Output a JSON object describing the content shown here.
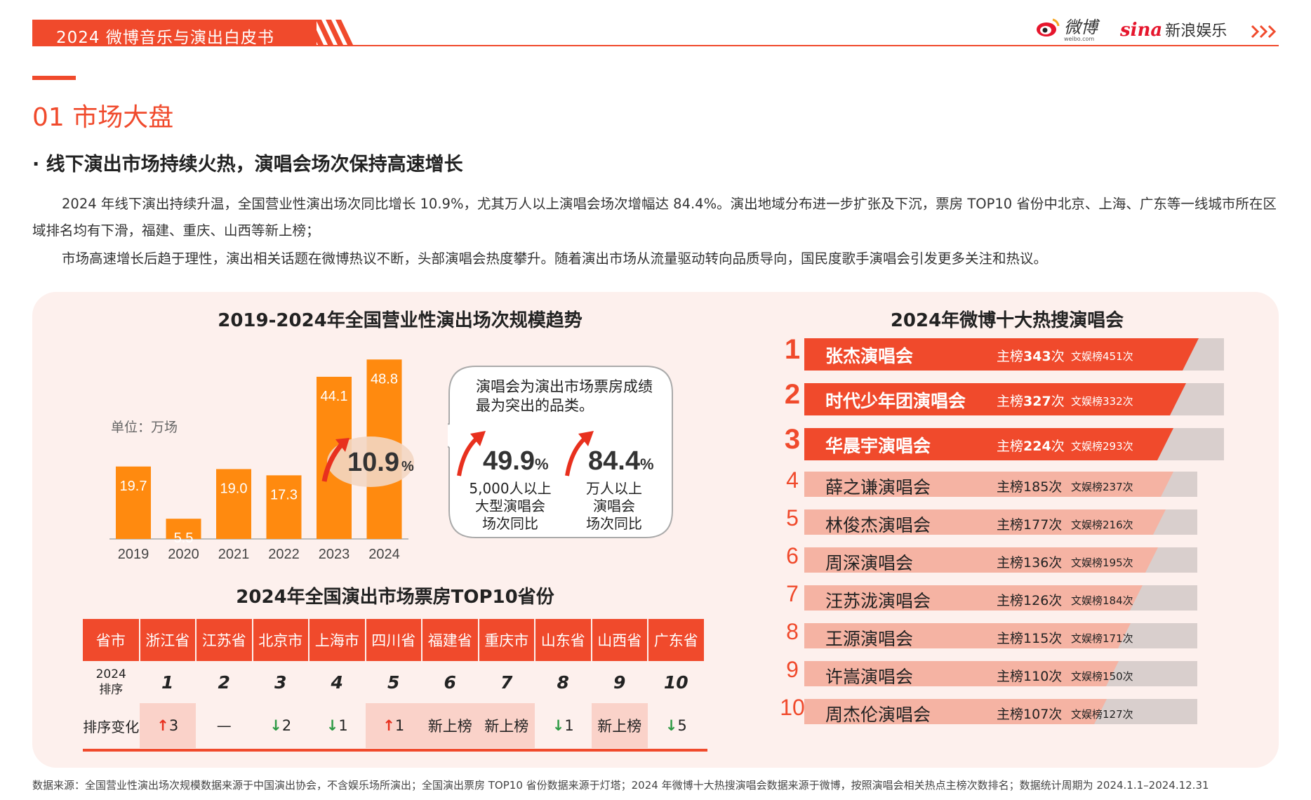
{
  "header": {
    "title": "2024 微博音乐与演出白皮书",
    "weibo_logo_text": "微博",
    "weibo_logo_sub": "weibo.com",
    "sina_brand": "sina",
    "sina_text": "新浪娱乐"
  },
  "section": {
    "title": "01  市场大盘",
    "bullet": "·  线下演出市场持续火热，演唱会场次保持高速增长",
    "paragraph1": "2024 年线下演出持续升温，全国营业性演出场次同比增长 10.9%，尤其万人以上演唱会场次增幅达 84.4%。演出地域分布进一步扩张及下沉，票房 TOP10 省份中北京、上海、广东等一线城市所在区域排名均有下滑，福建、重庆、山西等新上榜；",
    "paragraph2": "市场高速增长后趋于理性，演出相关话题在微博热议不断，头部演唱会热度攀升。随着演出市场从流量驱动转向品质导向，国民度歌手演唱会引发更多关注和热议。"
  },
  "chart_data": [
    {
      "type": "bar",
      "title": "2019-2024年全国营业性演出场次规模趋势",
      "unit_label": "单位：万场",
      "categories": [
        "2019",
        "2020",
        "2021",
        "2022",
        "2023",
        "2024"
      ],
      "values": [
        19.7,
        5.5,
        19.0,
        17.3,
        44.1,
        48.8
      ],
      "value_labels": [
        "19.7",
        "5.5",
        "19.0",
        "17.3",
        "44.1",
        "48.8"
      ],
      "growth_label": "10.9",
      "growth_pct_sign": "%",
      "bar_color": "#ff8a0f",
      "ylim": [
        0,
        50
      ]
    },
    {
      "type": "bar",
      "title": "2024年微博十大热搜演唱会",
      "categories": [
        "张杰演唱会",
        "时代少年团演唱会",
        "华晨宇演唱会",
        "薛之谦演唱会",
        "林俊杰演唱会",
        "周深演唱会",
        "汪苏泷演唱会",
        "王源演唱会",
        "许嵩演唱会",
        "周杰伦演唱会"
      ],
      "series": [
        {
          "name": "主榜",
          "values": [
            343,
            327,
            224,
            185,
            177,
            136,
            126,
            115,
            110,
            107
          ]
        },
        {
          "name": "文娱榜",
          "values": [
            451,
            332,
            293,
            237,
            216,
            195,
            184,
            171,
            150,
            127
          ]
        }
      ]
    }
  ],
  "callout": {
    "text": "演唱会为演出市场票房成绩最为突出的品类。",
    "stats": [
      {
        "value": "49.9",
        "pct": "%",
        "caption": [
          "5,000人以上",
          "大型演唱会",
          "场次同比"
        ]
      },
      {
        "value": "84.4",
        "pct": "%",
        "caption": [
          "万人以上",
          "演唱会",
          "场次同比"
        ]
      }
    ]
  },
  "top10_table": {
    "title": "2024年全国演出市场票房TOP10省份",
    "header_label": "省市",
    "rank_label": [
      "2024",
      "排序"
    ],
    "change_label": "排序变化",
    "provinces": [
      "浙江省",
      "江苏省",
      "北京市",
      "上海市",
      "四川省",
      "福建省",
      "重庆市",
      "山东省",
      "山西省",
      "广东省"
    ],
    "ranks": [
      "1",
      "2",
      "3",
      "4",
      "5",
      "6",
      "7",
      "8",
      "9",
      "10"
    ],
    "changes": [
      {
        "dir": "up",
        "arrow": "↑",
        "text": "3"
      },
      {
        "dir": "none",
        "arrow": "",
        "text": "—"
      },
      {
        "dir": "down",
        "arrow": "↓",
        "text": "2"
      },
      {
        "dir": "down",
        "arrow": "↓",
        "text": "1"
      },
      {
        "dir": "up",
        "arrow": "↑",
        "text": "1"
      },
      {
        "dir": "new",
        "arrow": "",
        "text": "新上榜"
      },
      {
        "dir": "new",
        "arrow": "",
        "text": "新上榜"
      },
      {
        "dir": "down",
        "arrow": "↓",
        "text": "1"
      },
      {
        "dir": "new",
        "arrow": "",
        "text": "新上榜"
      },
      {
        "dir": "down",
        "arrow": "↓",
        "text": "5"
      }
    ]
  },
  "ranking": {
    "main_prefix": "主榜",
    "sub_prefix": "文娱榜",
    "times_suffix": "次",
    "ranks": [
      "1",
      "2",
      "3",
      "4",
      "5",
      "6",
      "7",
      "8",
      "9",
      "10"
    ],
    "bar_levels": [
      0.94,
      0.91,
      0.88,
      0.94,
      0.92,
      0.9,
      0.86,
      0.83,
      0.8,
      0.77
    ],
    "colors": {
      "top3": "#f04a2c",
      "rest": "#f5b3a3",
      "track": "#d9cfcd"
    }
  },
  "footnote": "数据来源：全国营业性演出场次规模数据来源于中国演出协会，不含娱乐场所演出；全国演出票房 TOP10 省份数据来源于灯塔；2024 年微博十大热搜演唱会数据来源于微博，按照演唱会相关热点主榜次数排名；数据统计周期为 2024.1.1–2024.12.31"
}
